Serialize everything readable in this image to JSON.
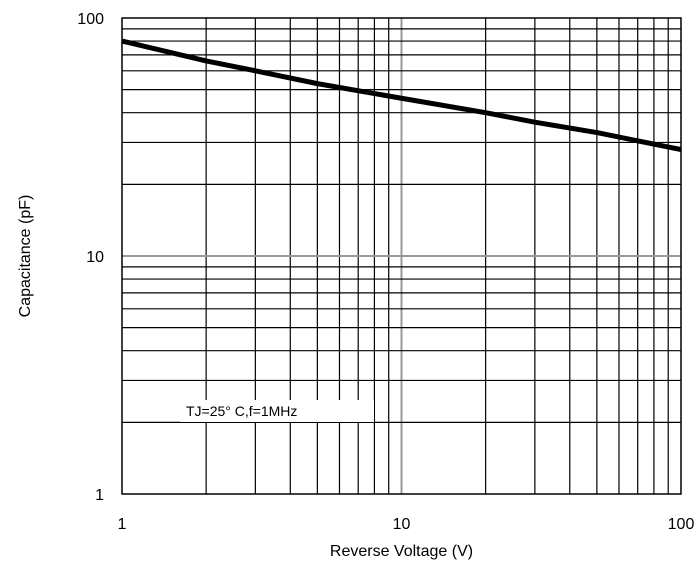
{
  "chart_data": {
    "type": "line",
    "title": "",
    "xlabel": "Reverse Voltage (V)",
    "ylabel": "Capacitance (pF)",
    "xscale": "log",
    "yscale": "log",
    "xlim": [
      1,
      100
    ],
    "ylim": [
      1,
      100
    ],
    "grid": true,
    "x_ticks": [
      1,
      10,
      100
    ],
    "x_tick_labels": [
      "1",
      "10",
      "100"
    ],
    "y_ticks": [
      1,
      10,
      100
    ],
    "y_tick_labels": [
      "1",
      "10",
      "100"
    ],
    "annotation": "TJ=25° C,f=1MHz",
    "series": [
      {
        "x": [
          1,
          2,
          3,
          5,
          10,
          20,
          30,
          50,
          100
        ],
        "y": [
          80,
          66,
          60,
          53,
          46,
          40,
          36.5,
          33,
          28
        ]
      }
    ],
    "colors": {
      "line": "#000000",
      "grid": "#000000",
      "major_grid": "#999999"
    }
  }
}
